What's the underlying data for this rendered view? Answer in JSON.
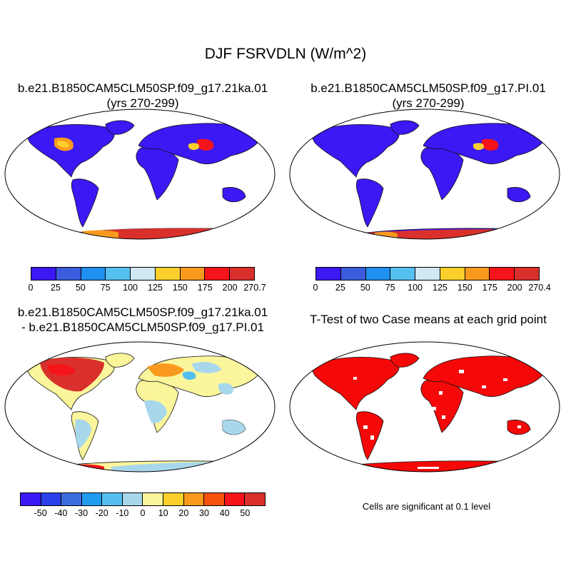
{
  "title": "DJF FSRVDLN (W/m^2)",
  "panels": [
    {
      "title1": "b.e21.B1850CAM5CLM50SP.f09_g17.21ka.01",
      "title2": "(yrs 270-299)"
    },
    {
      "title1": "b.e21.B1850CAM5CLM50SP.f09_g17.PI.01",
      "title2": "(yrs 270-299)"
    },
    {
      "title1": "b.e21.B1850CAM5CLM50SP.f09_g17.21ka.01",
      "title2": "- b.e21.B1850CAM5CLM50SP.f09_g17.PI.01"
    },
    {
      "title1": "T-Test of two Case means at each grid point",
      "title2": ""
    }
  ],
  "colorbars": [
    {
      "labels": [
        "0",
        "25",
        "50",
        "75",
        "100",
        "125",
        "150",
        "175",
        "200",
        "270.7"
      ],
      "colors": [
        "#3a19f5",
        "#3b5cdc",
        "#1f90f0",
        "#55c0f0",
        "#cfe8f3",
        "#fcd02c",
        "#f99a1e",
        "#f5141a",
        "#d9302c"
      ]
    },
    {
      "labels": [
        "0",
        "25",
        "50",
        "75",
        "100",
        "125",
        "150",
        "175",
        "200",
        "270.4"
      ],
      "colors": [
        "#3a19f5",
        "#3b5cdc",
        "#1f90f0",
        "#55c0f0",
        "#cfe8f3",
        "#fcd02c",
        "#f99a1e",
        "#f5141a",
        "#d9302c"
      ]
    },
    {
      "labels": [
        "-50",
        "-40",
        "-30",
        "-20",
        "-10",
        "0",
        "10",
        "20",
        "30",
        "40",
        "50"
      ],
      "colors": [
        "#3a19f5",
        "#2a41eb",
        "#3b6cdc",
        "#1f9cf0",
        "#55c0f0",
        "#a8d7ec",
        "#fbf59b",
        "#fcd02c",
        "#f99a1e",
        "#f5520e",
        "#f5141a",
        "#d9302c"
      ]
    }
  ],
  "significance_note": "Cells are significant at 0.1 level",
  "colors": {
    "land_low": "#3a19f5",
    "diff_neutral": "#fbf59b",
    "significant": "#f50808"
  }
}
